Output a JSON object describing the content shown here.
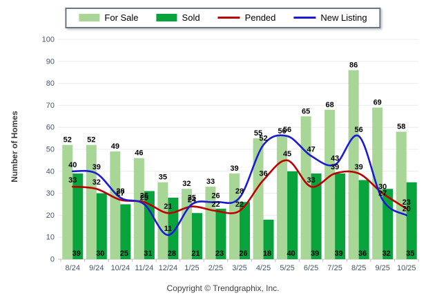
{
  "page": {
    "footer": "Copyright © Trendgraphix, Inc."
  },
  "colors": {
    "for_sale": "#a7d696",
    "sold": "#09a33d",
    "pended": "#bb0000",
    "new_listing": "#1a1ad6",
    "axis_text": "#44546a",
    "grid": "#ebebeb",
    "baseline": "#c0c0c0",
    "value_label": "#000000"
  },
  "chart_data": {
    "type": "bar",
    "subtype": "grouped bars with smooth overlay lines",
    "title": "",
    "xlabel": "",
    "ylabel": "Number of Homes",
    "ylim": [
      0,
      100
    ],
    "ytick_interval": 10,
    "grid": true,
    "legend_position": "top",
    "categories": [
      "8/24",
      "9/24",
      "10/24",
      "11/24",
      "12/24",
      "1/25",
      "2/25",
      "3/25",
      "4/25",
      "5/25",
      "6/25",
      "7/25",
      "8/25",
      "9/25",
      "10/25"
    ],
    "series": [
      {
        "name": "For Sale",
        "type": "bar",
        "color": "#a7d696",
        "values": [
          52,
          52,
          49,
          46,
          35,
          32,
          33,
          39,
          55,
          56,
          65,
          68,
          86,
          69,
          58
        ]
      },
      {
        "name": "Sold",
        "type": "bar",
        "color": "#09a33d",
        "values": [
          39,
          30,
          25,
          31,
          28,
          21,
          23,
          26,
          18,
          40,
          39,
          39,
          36,
          32,
          35
        ]
      },
      {
        "name": "Pended",
        "type": "line",
        "color": "#bb0000",
        "values": [
          33,
          32,
          27,
          26,
          21,
          24,
          22,
          22,
          36,
          45,
          33,
          39,
          39,
          30,
          23
        ]
      },
      {
        "name": "New Listing",
        "type": "line",
        "color": "#1a1ad6",
        "values": [
          40,
          39,
          28,
          25,
          11,
          25,
          26,
          28,
          52,
          56,
          47,
          43,
          56,
          27,
          20
        ]
      }
    ]
  }
}
